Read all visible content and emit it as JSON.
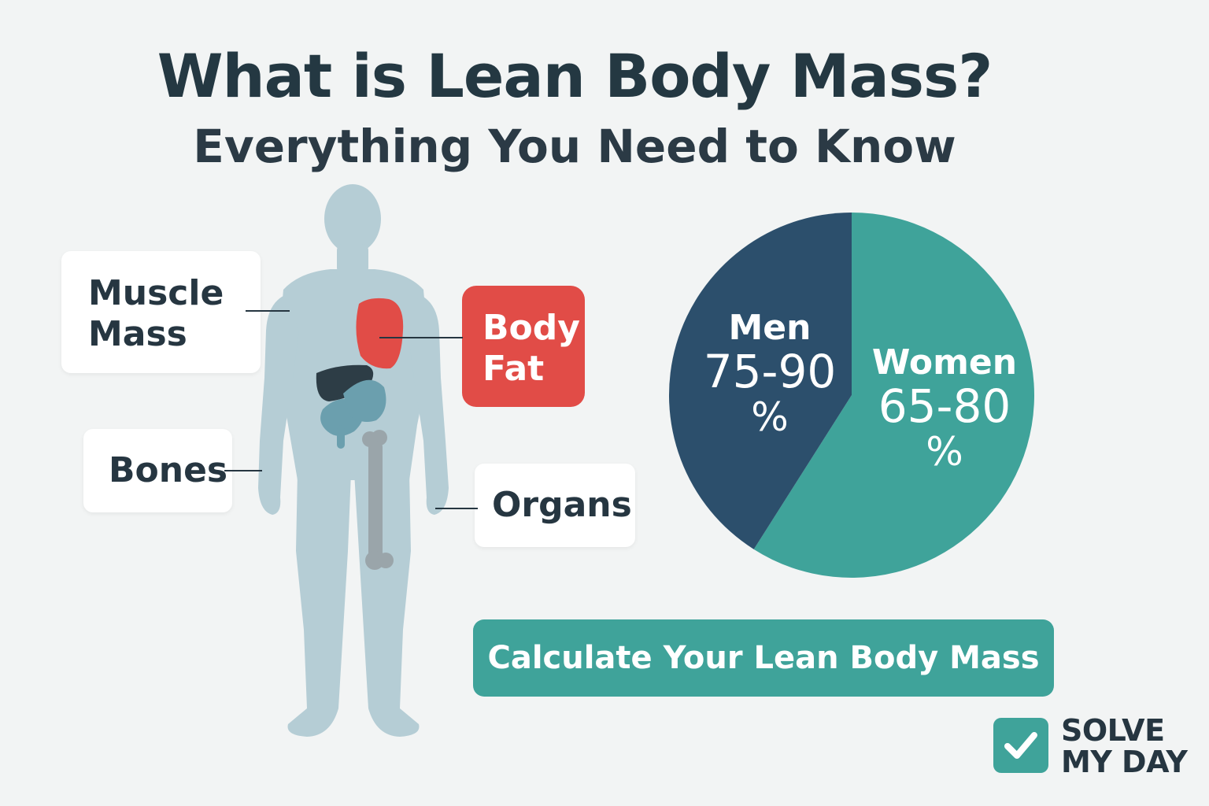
{
  "header": {
    "title": "What is Lean Body Mass?",
    "subtitle": "Everything You Need to Know"
  },
  "labels": {
    "muscle_line1": "Muscle",
    "muscle_line2": "Mass",
    "bones": "Bones",
    "fat_line1": "Body",
    "fat_line2": "Fat",
    "organs": "Organs"
  },
  "chart_data": {
    "type": "pie",
    "slices": [
      {
        "label": "Men",
        "range_text": "75-90",
        "unit": "%",
        "range": [
          75,
          90
        ],
        "share": 0.41,
        "color": "#2c4f6c"
      },
      {
        "label": "Women",
        "range_text": "65-80",
        "unit": "%",
        "range": [
          65,
          80
        ],
        "share": 0.59,
        "color": "#3fa39a"
      }
    ]
  },
  "cta": {
    "label": "Calculate Your Lean Body Mass"
  },
  "logo": {
    "line1": "SOLVE",
    "line2": "MY DAY"
  },
  "colors": {
    "background": "#f2f4f4",
    "text": "#263641",
    "accent": "#3fa39a",
    "men": "#2c4f6c",
    "fat": "#e14c47",
    "silhouette": "#b5cdd5"
  }
}
